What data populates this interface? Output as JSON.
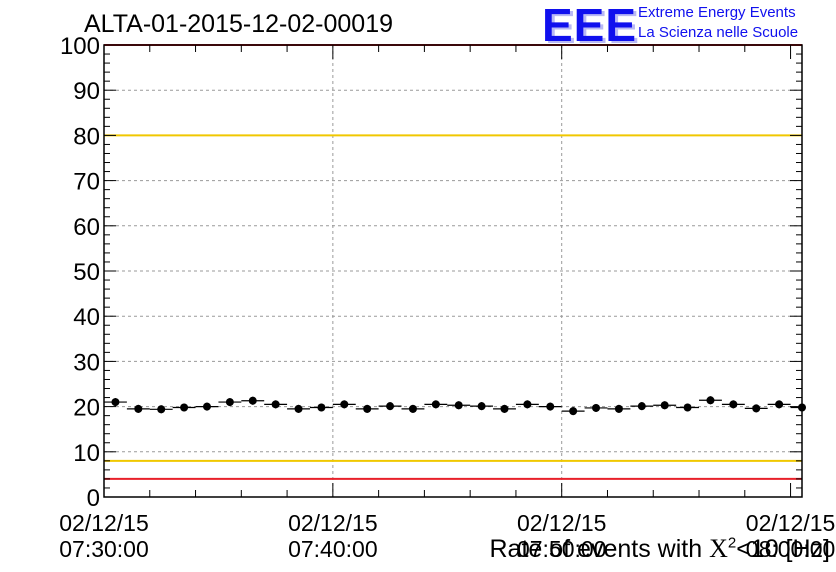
{
  "header": {
    "run_title": "ALTA-01-2015-12-02-00019"
  },
  "logo": {
    "letters": "EEE",
    "line1": "Extreme Energy Events",
    "line2": "La Scienza nelle Scuole",
    "color": "#1010ee"
  },
  "colors": {
    "red_limit": "#e8202a",
    "yellow_limit": "#f0c800",
    "marker": "#000000",
    "grid": "#9a9a9a"
  },
  "chart_data": {
    "type": "scatter",
    "title": "ALTA-01-2015-12-02-00019",
    "xlabel_prefix": "Rate of events with ",
    "xlabel_chi": "X",
    "xlabel_sup": "2",
    "xlabel_suffix": "<10 [Hz]",
    "ylim": [
      0,
      100
    ],
    "yticks": [
      "0",
      "10",
      "20",
      "30",
      "40",
      "50",
      "60",
      "70",
      "80",
      "90",
      "100"
    ],
    "xticks": [
      {
        "date": "02/12/15",
        "time": "07:30:00"
      },
      {
        "date": "02/12/15",
        "time": "07:40:00"
      },
      {
        "date": "02/12/15",
        "time": "07:50:00"
      },
      {
        "date": "02/12/15",
        "time": "08:00:00"
      }
    ],
    "grid": true,
    "limits": {
      "red": [
        4,
        100
      ],
      "yellow": [
        8,
        80
      ]
    },
    "bin_minutes": 1,
    "x_start": "07:30:00",
    "values": [
      21.0,
      19.5,
      19.4,
      19.8,
      20.0,
      21.0,
      21.3,
      20.5,
      19.5,
      19.8,
      20.5,
      19.5,
      20.1,
      19.5,
      20.5,
      20.3,
      20.1,
      19.5,
      20.5,
      20.0,
      19.0,
      19.7,
      19.5,
      20.1,
      20.3,
      19.8,
      21.4,
      20.5,
      19.6,
      20.5,
      19.8
    ]
  }
}
